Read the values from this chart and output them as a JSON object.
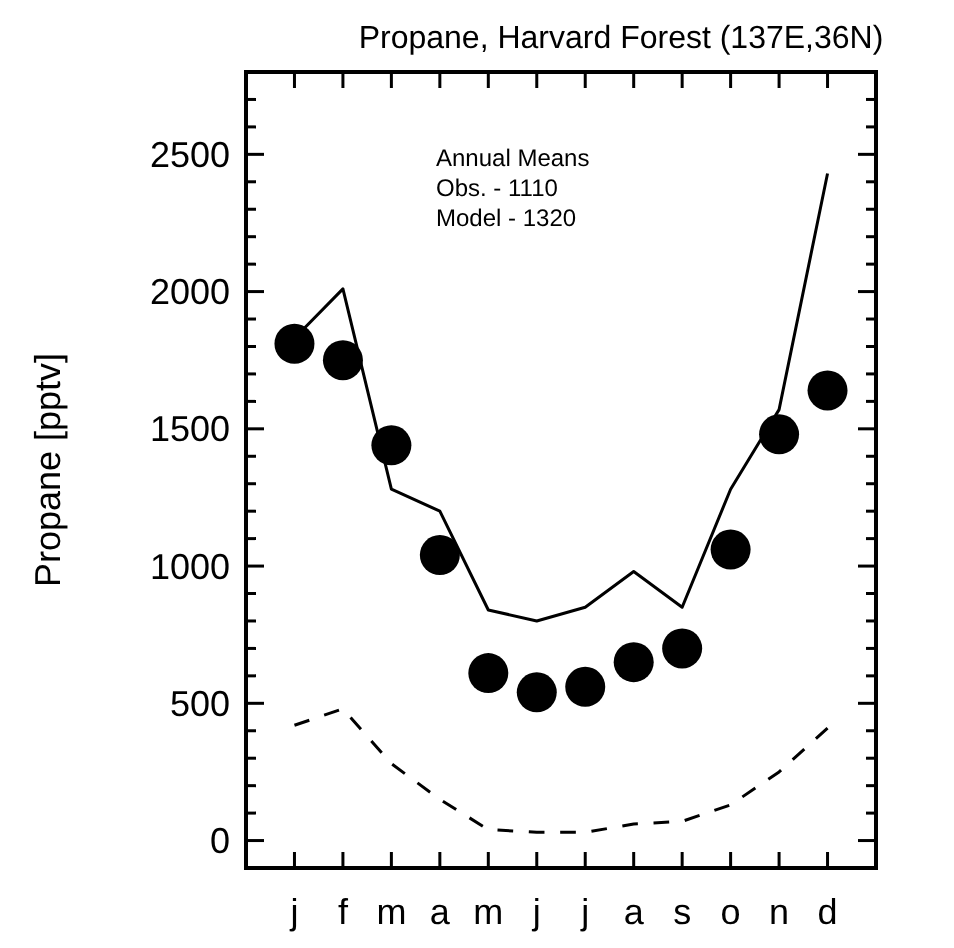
{
  "chart_data": {
    "type": "line",
    "title": "Propane,  Harvard Forest  (137E,36N)",
    "ylabel": "Propane [pptv]",
    "categories": [
      "j",
      "f",
      "m",
      "a",
      "m",
      "j",
      "j",
      "a",
      "s",
      "o",
      "n",
      "d"
    ],
    "series": [
      {
        "type": "scatter",
        "marker": "circle",
        "color": "#000000",
        "values": [
          1810,
          1750,
          1440,
          1040,
          610,
          540,
          560,
          650,
          700,
          1060,
          1480,
          1640
        ]
      },
      {
        "line_style": "solid",
        "color": "#000000",
        "values": [
          1830,
          2010,
          1280,
          1200,
          840,
          800,
          850,
          980,
          850,
          1280,
          1570,
          2430
        ]
      },
      {
        "line_style": "dashed",
        "color": "#000000",
        "values": [
          420,
          480,
          280,
          150,
          40,
          30,
          30,
          60,
          70,
          130,
          250,
          410
        ]
      }
    ],
    "annotations": [
      "Annual Means",
      "Obs. - 1110",
      "Model - 1320"
    ],
    "ylim": [
      -100,
      2800
    ],
    "yticks": [
      0,
      {
        "value": 100,
        "label": null
      },
      {
        "value": 200,
        "label": null
      },
      {
        "value": 300,
        "label": null
      },
      {
        "value": 400,
        "label": null
      },
      500,
      {
        "value": 600,
        "label": null
      },
      {
        "value": 700,
        "label": null
      },
      {
        "value": 800,
        "label": null
      },
      {
        "value": 900,
        "label": null
      },
      1000,
      {
        "value": 1100,
        "label": null
      },
      {
        "value": 1200,
        "label": null
      },
      {
        "value": 1300,
        "label": null
      },
      {
        "value": 1400,
        "label": null
      },
      1500,
      {
        "value": 1600,
        "label": null
      },
      {
        "value": 1700,
        "label": null
      },
      {
        "value": 1800,
        "label": null
      },
      {
        "value": 1900,
        "label": null
      },
      2000,
      {
        "value": 2100,
        "label": null
      },
      {
        "value": 2200,
        "label": null
      },
      {
        "value": 2300,
        "label": null
      },
      {
        "value": 2400,
        "label": null
      },
      2500,
      {
        "value": 2600,
        "label": null
      },
      {
        "value": 2700,
        "label": null
      }
    ]
  }
}
